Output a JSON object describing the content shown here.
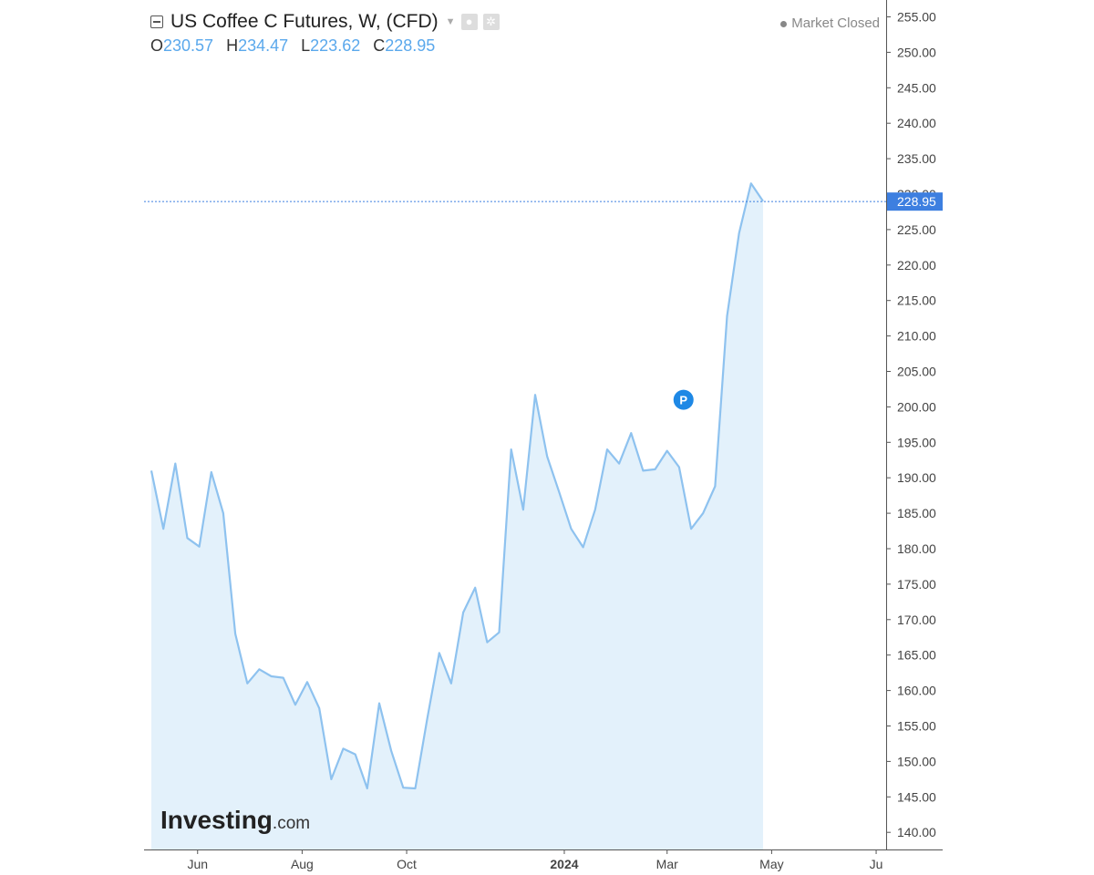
{
  "header": {
    "title": "US Coffee C Futures, W, (CFD)",
    "ohlc": [
      {
        "key": "O",
        "value": "230.57"
      },
      {
        "key": "H",
        "value": "234.47"
      },
      {
        "key": "L",
        "value": "223.62"
      },
      {
        "key": "C",
        "value": "228.95"
      }
    ],
    "status": "Market Closed"
  },
  "watermark": {
    "brand": "Investing",
    "suffix": ".com"
  },
  "marker": {
    "label": "P",
    "date": "2024-03-01",
    "value": 201
  },
  "colors": {
    "line": "#8ec2ef",
    "fill": "#e3f1fb",
    "price_tag": "#3d7fe0",
    "marker": "#1e88e5"
  },
  "chart_data": {
    "type": "area",
    "title": "US Coffee C Futures, W, (CFD)",
    "xlabel": "",
    "ylabel": "",
    "ylim": [
      137.5,
      257.5
    ],
    "yticks": [
      "140.00",
      "145.00",
      "150.00",
      "155.00",
      "160.00",
      "165.00",
      "170.00",
      "175.00",
      "180.00",
      "185.00",
      "190.00",
      "195.00",
      "200.00",
      "205.00",
      "210.00",
      "215.00",
      "220.00",
      "225.00",
      "230.00",
      "235.00",
      "240.00",
      "245.00",
      "250.00",
      "255.00"
    ],
    "xticks": [
      {
        "label": "Jun",
        "date": "2023-06-01"
      },
      {
        "label": "Aug",
        "date": "2023-08-01"
      },
      {
        "label": "Oct",
        "date": "2023-10-01"
      },
      {
        "label": "2024",
        "date": "2024-01-01"
      },
      {
        "label": "Mar",
        "date": "2024-03-01"
      },
      {
        "label": "May",
        "date": "2024-05-01"
      },
      {
        "label": "Ju",
        "date": "2024-07-01"
      }
    ],
    "last_price": "228.95",
    "grid": false,
    "series": [
      {
        "dates": [
          "2023-05-05",
          "2023-05-12",
          "2023-05-19",
          "2023-05-26",
          "2023-06-02",
          "2023-06-09",
          "2023-06-16",
          "2023-06-23",
          "2023-06-30",
          "2023-07-07",
          "2023-07-14",
          "2023-07-21",
          "2023-07-28",
          "2023-08-04",
          "2023-08-11",
          "2023-08-18",
          "2023-08-25",
          "2023-09-01",
          "2023-09-08",
          "2023-09-15",
          "2023-09-22",
          "2023-09-29",
          "2023-10-06",
          "2023-10-13",
          "2023-10-20",
          "2023-10-27",
          "2023-11-03",
          "2023-11-10",
          "2023-11-17",
          "2023-11-24",
          "2023-12-01",
          "2023-12-08",
          "2023-12-15",
          "2023-12-22",
          "2023-12-29",
          "2024-01-05",
          "2024-01-12",
          "2024-01-19",
          "2024-01-26",
          "2024-02-02",
          "2024-02-09",
          "2024-02-16",
          "2024-02-23",
          "2024-03-01",
          "2024-03-08",
          "2024-03-15",
          "2024-03-22",
          "2024-03-29",
          "2024-04-05",
          "2024-04-12",
          "2024-04-19",
          "2024-04-26"
        ],
        "values": [
          191.0,
          182.8,
          192.0,
          181.5,
          180.3,
          190.8,
          185.0,
          168.0,
          161.0,
          163.0,
          162.0,
          161.8,
          158.0,
          161.2,
          157.5,
          147.5,
          151.8,
          151.0,
          146.2,
          158.2,
          151.5,
          146.3,
          146.2,
          156.0,
          165.3,
          161.0,
          171.0,
          174.5,
          166.8,
          168.2,
          194.0,
          185.5,
          201.7,
          193.0,
          188.0,
          182.8,
          180.2,
          185.5,
          194.0,
          192.0,
          196.3,
          191.0,
          191.2,
          193.8,
          191.5,
          182.8,
          185.0,
          188.8,
          212.8,
          224.5,
          231.5,
          229.0
        ]
      }
    ]
  }
}
